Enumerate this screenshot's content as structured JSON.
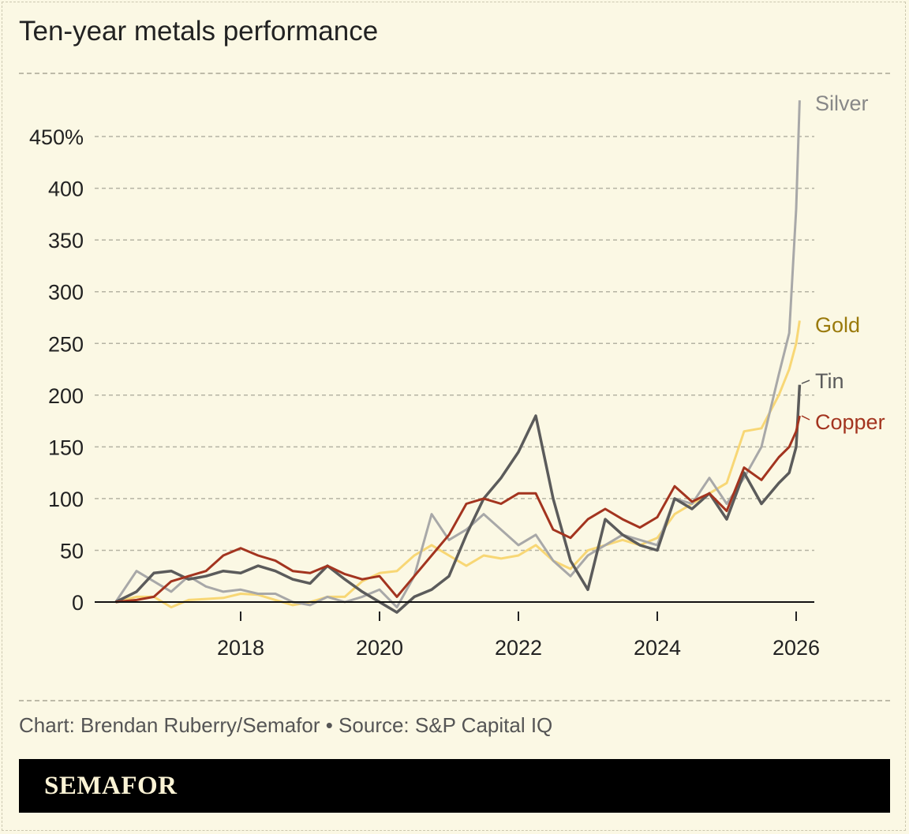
{
  "title": "Ten-year metals performance",
  "credit": "Chart: Brendan Ruberry/Semafor • Source: S&P Capital IQ",
  "brand": "SEMAFOR",
  "colors": {
    "background": "#fbf8e4",
    "gold": "#f8d775",
    "gold_label": "#9a7a0c",
    "copper": "#a3341f",
    "silver": "#a8a8a8",
    "tin": "#5b5b5b"
  },
  "chart_data": {
    "type": "line",
    "title": "Ten-year metals performance",
    "xlabel": "",
    "ylabel": "",
    "ylim": [
      -15,
      490
    ],
    "xlim": [
      2016.0,
      2026.2
    ],
    "yticks": [
      0,
      50,
      100,
      150,
      200,
      250,
      300,
      350,
      400,
      450
    ],
    "ytick_labels": [
      "0",
      "50",
      "100",
      "150",
      "200",
      "250",
      "300",
      "350",
      "400",
      "450%"
    ],
    "xticks": [
      2018,
      2020,
      2022,
      2024,
      2026
    ],
    "xtick_labels": [
      "2018",
      "2020",
      "2022",
      "2024",
      "2026"
    ],
    "grid": "horizontal dashed",
    "legend": "direct labels at right end of lines",
    "x": [
      2016.2,
      2016.5,
      2016.75,
      2017.0,
      2017.25,
      2017.5,
      2017.75,
      2018.0,
      2018.25,
      2018.5,
      2018.75,
      2019.0,
      2019.25,
      2019.5,
      2019.75,
      2020.0,
      2020.25,
      2020.5,
      2020.75,
      2021.0,
      2021.25,
      2021.5,
      2021.75,
      2022.0,
      2022.25,
      2022.5,
      2022.75,
      2023.0,
      2023.25,
      2023.5,
      2023.75,
      2024.0,
      2024.25,
      2024.5,
      2024.75,
      2025.0,
      2025.25,
      2025.5,
      2025.75,
      2025.9,
      2026.0,
      2026.05
    ],
    "series": [
      {
        "name": "Gold",
        "color": "#f8d775",
        "values": [
          0,
          5,
          5,
          -5,
          2,
          3,
          4,
          8,
          7,
          2,
          -3,
          0,
          5,
          5,
          20,
          28,
          30,
          45,
          55,
          45,
          35,
          45,
          42,
          45,
          55,
          40,
          32,
          50,
          55,
          60,
          55,
          62,
          85,
          95,
          105,
          115,
          165,
          168,
          200,
          225,
          250,
          272
        ]
      },
      {
        "name": "Silver",
        "color": "#a8a8a8",
        "values": [
          0,
          30,
          20,
          10,
          25,
          15,
          10,
          12,
          8,
          8,
          0,
          -3,
          5,
          0,
          5,
          12,
          -5,
          25,
          85,
          60,
          70,
          85,
          70,
          55,
          65,
          40,
          25,
          45,
          55,
          65,
          60,
          55,
          100,
          95,
          120,
          95,
          120,
          150,
          220,
          260,
          380,
          485
        ]
      },
      {
        "name": "Tin",
        "color": "#5b5b5b",
        "values": [
          0,
          10,
          28,
          30,
          22,
          25,
          30,
          28,
          35,
          30,
          22,
          18,
          35,
          22,
          10,
          0,
          -10,
          5,
          12,
          25,
          65,
          100,
          120,
          145,
          180,
          100,
          40,
          12,
          80,
          65,
          55,
          50,
          100,
          90,
          105,
          80,
          125,
          95,
          115,
          125,
          150,
          210
        ]
      },
      {
        "name": "Copper",
        "color": "#a3341f",
        "values": [
          0,
          2,
          5,
          20,
          25,
          30,
          45,
          52,
          45,
          40,
          30,
          28,
          35,
          27,
          22,
          25,
          5,
          25,
          45,
          65,
          95,
          100,
          95,
          105,
          105,
          70,
          62,
          80,
          90,
          80,
          72,
          82,
          112,
          97,
          105,
          88,
          130,
          118,
          140,
          150,
          165,
          180
        ]
      }
    ]
  }
}
